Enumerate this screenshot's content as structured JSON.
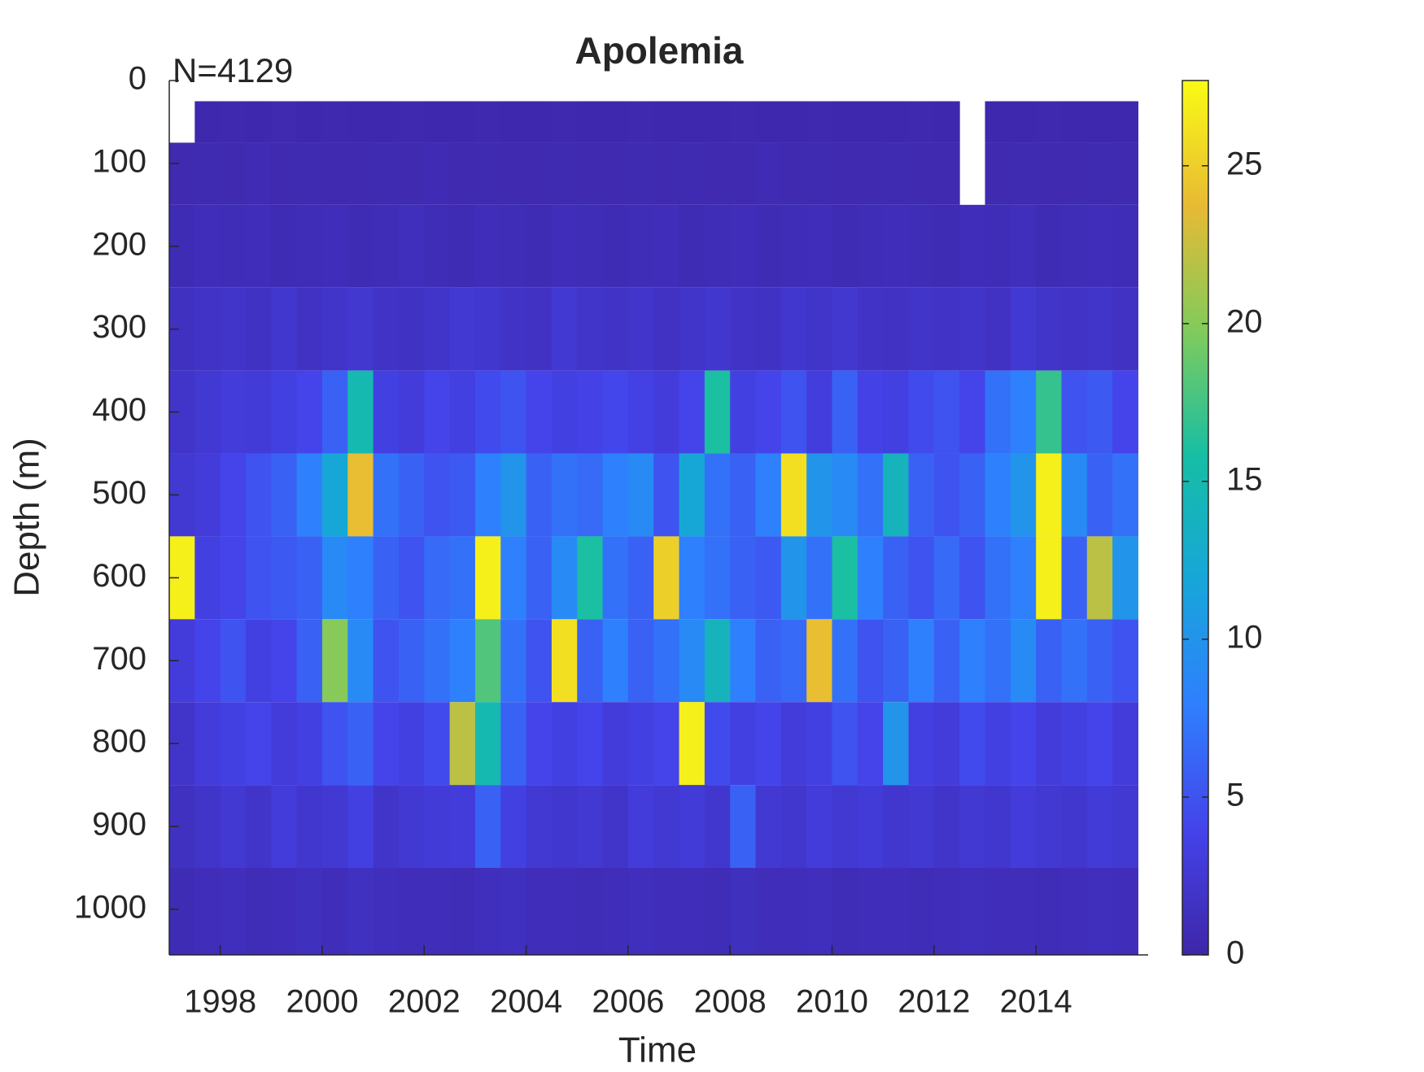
{
  "chart_data": {
    "type": "heatmap",
    "title": "Apolemia",
    "annotation": "N=4129",
    "x_label": "Time",
    "y_label": "Depth (m)",
    "xlim": [
      1997,
      2016.2
    ],
    "xticks": [
      1998,
      2000,
      2002,
      2004,
      2006,
      2008,
      2010,
      2012,
      2014
    ],
    "ylim": [
      0,
      1055
    ],
    "y_reversed": true,
    "yticks": [
      0,
      100,
      200,
      300,
      400,
      500,
      600,
      700,
      800,
      900,
      1000
    ],
    "xbins": [
      1997.0,
      1997.5,
      1998.0,
      1998.5,
      1999.0,
      1999.5,
      2000.0,
      2000.5,
      2001.0,
      2001.5,
      2002.0,
      2002.5,
      2003.0,
      2003.5,
      2004.0,
      2004.5,
      2005.0,
      2005.5,
      2006.0,
      2006.5,
      2007.0,
      2007.5,
      2008.0,
      2008.5,
      2009.0,
      2009.5,
      2010.0,
      2010.5,
      2011.0,
      2011.5,
      2012.0,
      2012.5,
      2013.0,
      2013.5,
      2014.0,
      2014.5,
      2015.0,
      2015.5,
      2016.0
    ],
    "ybins": [
      25,
      75,
      150,
      250,
      350,
      450,
      550,
      650,
      750,
      850,
      950,
      1055
    ],
    "z": [
      [
        null,
        0.3,
        0.4,
        0.3,
        0.5,
        0.3,
        0.4,
        0.3,
        0.3,
        0.4,
        0.3,
        0.3,
        0.4,
        0.3,
        0.3,
        0.4,
        0.3,
        0.3,
        0.4,
        0.3,
        0.3,
        0.3,
        0.4,
        0.3,
        0.3,
        0.4,
        0.3,
        0.3,
        0.3,
        0.4,
        0.3,
        null,
        0.3,
        0.3,
        0.4,
        0.3,
        0.3,
        0.3
      ],
      [
        0.5,
        0.6,
        0.5,
        0.7,
        0.5,
        0.6,
        0.5,
        0.5,
        0.6,
        0.5,
        0.7,
        0.5,
        0.6,
        0.5,
        0.5,
        0.6,
        0.5,
        0.5,
        0.6,
        0.5,
        0.6,
        0.5,
        0.5,
        0.7,
        0.5,
        0.6,
        0.5,
        0.5,
        0.6,
        0.5,
        0.5,
        null,
        0.5,
        0.6,
        0.5,
        0.5,
        0.6,
        0.5
      ],
      [
        0.8,
        1.0,
        0.9,
        1.1,
        0.8,
        0.9,
        1.0,
        0.8,
        0.9,
        1.2,
        0.9,
        0.8,
        1.0,
        0.9,
        0.8,
        1.1,
        0.9,
        0.8,
        0.9,
        1.0,
        0.8,
        0.9,
        1.0,
        0.8,
        0.9,
        1.0,
        0.8,
        0.9,
        1.1,
        0.9,
        0.8,
        1.0,
        0.9,
        1.2,
        0.8,
        0.9,
        1.0,
        0.9
      ],
      [
        1.5,
        1.8,
        2.0,
        1.6,
        2.2,
        1.7,
        1.9,
        2.4,
        1.8,
        1.6,
        2.0,
        2.6,
        2.2,
        1.8,
        1.7,
        2.5,
        1.9,
        1.8,
        2.1,
        1.7,
        1.9,
        2.3,
        1.8,
        1.6,
        2.2,
        1.9,
        2.4,
        1.8,
        1.7,
        2.0,
        1.8,
        1.9,
        1.7,
        2.6,
        2.0,
        1.8,
        1.9,
        1.7
      ],
      [
        2.0,
        2.5,
        3.0,
        2.8,
        3.5,
        4.0,
        6.0,
        15.0,
        3.5,
        3.0,
        4.0,
        3.5,
        4.5,
        5.0,
        4.0,
        3.5,
        3.8,
        4.2,
        3.6,
        3.0,
        4.0,
        16.0,
        3.5,
        4.0,
        5.0,
        3.2,
        6.0,
        3.8,
        3.5,
        4.5,
        5.0,
        4.0,
        7.0,
        8.0,
        17.0,
        5.0,
        5.5,
        4.0
      ],
      [
        2.5,
        3.0,
        4.0,
        5.0,
        6.0,
        8.0,
        12.0,
        24.0,
        7.0,
        6.0,
        5.0,
        5.5,
        8.0,
        10.0,
        6.0,
        7.0,
        6.5,
        8.0,
        9.0,
        5.0,
        12.0,
        7.0,
        6.0,
        8.0,
        26.0,
        10.0,
        9.0,
        7.0,
        14.0,
        6.0,
        5.0,
        6.0,
        8.0,
        10.0,
        27.0,
        9.0,
        6.0,
        7.0
      ],
      [
        27.0,
        3.5,
        4.0,
        5.0,
        5.5,
        6.0,
        9.0,
        8.0,
        6.0,
        5.0,
        6.5,
        7.0,
        27.0,
        8.0,
        6.0,
        9.0,
        16.0,
        7.0,
        6.0,
        25.0,
        8.0,
        7.0,
        6.0,
        5.5,
        10.0,
        7.0,
        16.0,
        8.0,
        6.0,
        5.0,
        6.5,
        5.0,
        7.0,
        8.0,
        27.0,
        6.0,
        22.0,
        10.0
      ],
      [
        3.0,
        4.0,
        5.0,
        3.5,
        4.0,
        6.0,
        20.0,
        9.0,
        5.0,
        6.0,
        7.0,
        8.0,
        18.0,
        7.0,
        5.0,
        26.0,
        6.0,
        8.0,
        6.0,
        7.0,
        9.0,
        14.0,
        8.0,
        6.0,
        6.5,
        24.0,
        7.0,
        5.0,
        6.0,
        8.0,
        6.0,
        8.0,
        7.0,
        9.0,
        6.0,
        7.0,
        6.0,
        5.0
      ],
      [
        2.0,
        3.0,
        3.5,
        4.0,
        3.0,
        3.5,
        5.0,
        6.0,
        4.0,
        3.5,
        4.5,
        22.0,
        15.0,
        6.0,
        4.0,
        3.5,
        4.0,
        3.0,
        3.5,
        4.0,
        27.0,
        4.5,
        3.5,
        4.0,
        3.0,
        3.5,
        5.0,
        4.0,
        10.0,
        3.5,
        3.0,
        4.5,
        3.5,
        4.0,
        3.0,
        3.5,
        4.0,
        3.0
      ],
      [
        1.5,
        2.0,
        2.5,
        2.0,
        3.0,
        2.2,
        2.5,
        3.5,
        2.0,
        2.5,
        2.8,
        3.0,
        6.0,
        3.5,
        2.5,
        2.2,
        2.5,
        2.0,
        3.0,
        2.5,
        2.8,
        2.2,
        6.0,
        2.5,
        2.2,
        3.0,
        2.5,
        2.8,
        2.2,
        2.5,
        2.0,
        2.5,
        2.2,
        3.0,
        2.5,
        2.2,
        2.8,
        2.5
      ],
      [
        0.8,
        1.0,
        1.2,
        0.9,
        1.1,
        1.3,
        1.0,
        1.5,
        1.2,
        1.0,
        1.1,
        0.9,
        1.2,
        1.4,
        1.0,
        1.1,
        0.9,
        1.0,
        1.2,
        1.1,
        1.0,
        0.9,
        1.3,
        1.0,
        1.1,
        1.2,
        0.9,
        1.0,
        1.1,
        0.9,
        1.0,
        1.2,
        1.0,
        1.1,
        0.9,
        1.0,
        1.2,
        1.0
      ]
    ],
    "colormap": [
      "#3e26a8",
      "#4443ea",
      "#2f7ffe",
      "#17a6d9",
      "#16bea4",
      "#81cb5b",
      "#e8ba34",
      "#f9fb15"
    ],
    "clim": [
      0,
      27.7
    ],
    "cticks": [
      0,
      5,
      10,
      15,
      20,
      25
    ]
  }
}
